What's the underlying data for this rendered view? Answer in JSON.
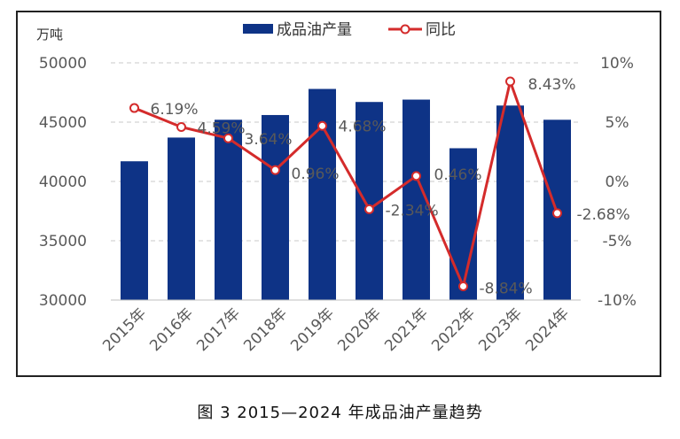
{
  "chart_data": {
    "type": "bar",
    "unit_left": "万吨",
    "categories": [
      "2015年",
      "2016年",
      "2017年",
      "2018年",
      "2019年",
      "2020年",
      "2021年",
      "2022年",
      "2023年",
      "2024年"
    ],
    "series": [
      {
        "name": "成品油产量",
        "type": "bar",
        "axis": "left",
        "color": "#0e3386",
        "values": [
          41700,
          43700,
          45200,
          45600,
          47800,
          46700,
          46900,
          42800,
          46400,
          45200
        ]
      },
      {
        "name": "同比",
        "type": "line",
        "axis": "right",
        "color": "#d42b2b",
        "values": [
          6.19,
          4.59,
          3.64,
          0.96,
          4.68,
          -2.34,
          0.46,
          -8.84,
          8.43,
          -2.68
        ],
        "labels": [
          "6.19%",
          "4.59%",
          "3.64%",
          "0.96%",
          "4.68%",
          "-2.34%",
          "0.46%",
          "-8.84%",
          "8.43%",
          "-2.68%"
        ]
      }
    ],
    "ylim_left": [
      30000,
      50000
    ],
    "yticks_left": [
      "50000",
      "45000",
      "40000",
      "35000",
      "30000"
    ],
    "ylim_right": [
      -10,
      10
    ],
    "yticks_right": [
      "10%",
      "5%",
      "0%",
      "-5%",
      "-10%"
    ],
    "grid": true,
    "legend_position": "top"
  },
  "caption": "图 3  2015—2024 年成品油产量趋势"
}
